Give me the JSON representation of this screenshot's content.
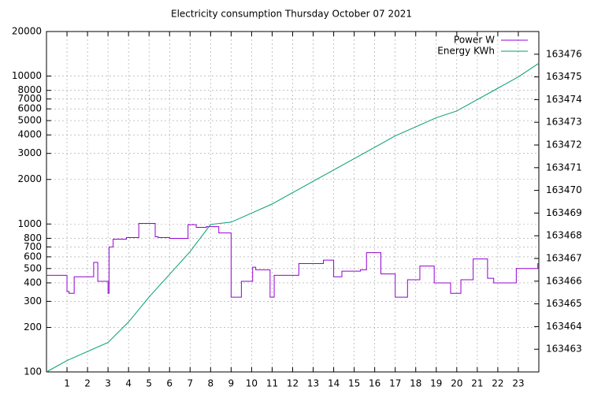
{
  "chart_data": {
    "type": "line",
    "title": "Electricity consumption Thursday October 07 2021",
    "xlim": [
      0,
      24
    ],
    "xticks": [
      1,
      2,
      3,
      4,
      5,
      6,
      7,
      8,
      9,
      10,
      11,
      12,
      13,
      14,
      15,
      16,
      17,
      18,
      19,
      20,
      21,
      22,
      23
    ],
    "ylim": [
      100,
      20000
    ],
    "yscale": "log",
    "yticks": [
      100,
      200,
      300,
      400,
      500,
      600,
      700,
      800,
      1000,
      2000,
      3000,
      4000,
      5000,
      6000,
      7000,
      8000,
      10000,
      20000
    ],
    "y2lim": [
      163462,
      163477
    ],
    "y2ticks": [
      163463,
      163464,
      163465,
      163466,
      163467,
      163468,
      163469,
      163470,
      163471,
      163472,
      163473,
      163474,
      163475,
      163476
    ],
    "grid": true,
    "legend": "top-right",
    "series": [
      {
        "name": "Power W",
        "color": "#9400d3",
        "style": "steps",
        "x": [
          0,
          1.0,
          1.1,
          1.35,
          2.3,
          2.5,
          3.0,
          3.05,
          3.1,
          3.25,
          3.9,
          4.5,
          5.3,
          5.45,
          6.0,
          6.9,
          7.3,
          7.8,
          8.4,
          9.0,
          9.5,
          10.05,
          10.2,
          10.9,
          11.1,
          12.3,
          13.5,
          14.0,
          14.4,
          15.3,
          15.6,
          16.3,
          17.0,
          17.6,
          18.2,
          18.9,
          19.7,
          20.2,
          20.8,
          21.5,
          21.8,
          22.9,
          23.95,
          24
        ],
        "values": [
          450,
          350,
          340,
          440,
          550,
          410,
          340,
          700,
          700,
          790,
          810,
          1010,
          820,
          810,
          800,
          990,
          950,
          960,
          870,
          320,
          410,
          510,
          490,
          320,
          450,
          540,
          570,
          440,
          480,
          490,
          640,
          460,
          320,
          420,
          520,
          400,
          340,
          420,
          580,
          430,
          400,
          500,
          540,
          540
        ]
      },
      {
        "name": "Energy KWh",
        "color": "#009e73",
        "axis": "y2",
        "x": [
          0,
          1,
          2,
          3,
          4,
          5,
          6,
          7,
          8,
          9,
          10,
          11,
          12,
          13,
          14,
          15,
          16,
          17,
          18,
          19,
          20,
          21,
          22,
          23,
          24
        ],
        "values": [
          163462.0,
          163462.5,
          163462.9,
          163463.3,
          163464.2,
          163465.3,
          163466.3,
          163467.3,
          163468.5,
          163468.6,
          163469.0,
          163469.4,
          163469.9,
          163470.4,
          163470.9,
          163471.4,
          163471.9,
          163472.4,
          163472.8,
          163473.2,
          163473.5,
          163474.0,
          163474.5,
          163475.0,
          163475.6
        ]
      }
    ]
  }
}
